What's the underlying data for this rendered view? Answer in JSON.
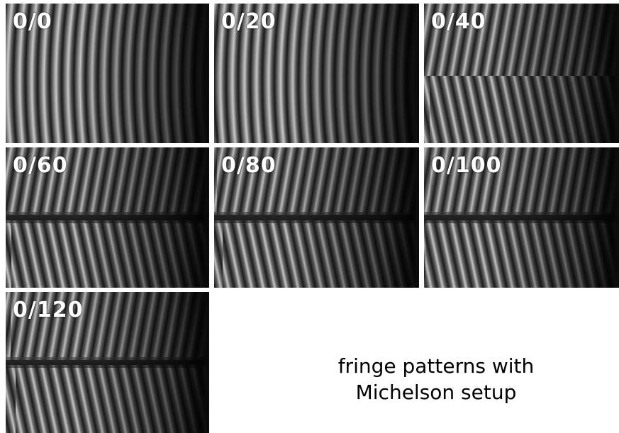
{
  "panels": [
    {
      "label": "0/0"
    },
    {
      "label": "0/20"
    },
    {
      "label": "0/40"
    },
    {
      "label": "0/60"
    },
    {
      "label": "0/80"
    },
    {
      "label": "0/100"
    },
    {
      "label": "0/120"
    }
  ],
  "caption": [
    "fringe patterns with",
    "Michelson setup"
  ]
}
